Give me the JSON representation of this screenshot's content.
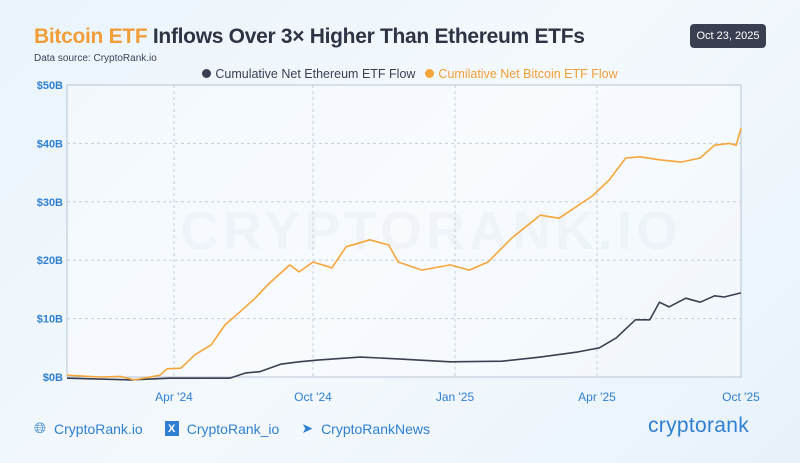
{
  "header": {
    "title_highlight": "Bitcoin ETF",
    "title_rest": " Inflows Over 3× Higher Than Ethereum ETFs",
    "source": "Data source: CryptoRank.io",
    "date": "Oct 23, 2025"
  },
  "watermark": "CRYPTORANK.IO",
  "footer": {
    "website": "CryptoRank.io",
    "x": "CryptoRank_io",
    "telegram": "CryptoRankNews",
    "logo": "cryptorank"
  },
  "colors": {
    "eth": "#3b3f52",
    "btc": "#f5a53a",
    "axis": "#2f7fd3"
  },
  "chart_data": {
    "type": "line",
    "title": "Bitcoin ETF Inflows Over 3× Higher Than Ethereum ETFs",
    "x_unit": "months since Jan 2024",
    "ylabel": "",
    "ylim": [
      0,
      50
    ],
    "yticks": [
      {
        "v": 0,
        "label": "$0B"
      },
      {
        "v": 10,
        "label": "$10B"
      },
      {
        "v": 20,
        "label": "$20B"
      },
      {
        "v": 30,
        "label": "$30B"
      },
      {
        "v": 40,
        "label": "$40B"
      },
      {
        "v": 50,
        "label": "$50B"
      }
    ],
    "xticks": [
      {
        "v": 3,
        "label": "Apr '24"
      },
      {
        "v": 9,
        "label": "Oct '24"
      },
      {
        "v": 12,
        "label": "Jan '25"
      },
      {
        "v": 15,
        "label": "Apr '25"
      },
      {
        "v": 21,
        "label": "Oct '25"
      }
    ],
    "legend": "top-center",
    "grid": true,
    "series": [
      {
        "name": "Cumulative Net Ethereum ETF Flow",
        "color": "#3b3f52",
        "x": [
          -1.6,
          1.1,
          2.8,
          5.4,
          6.1,
          6.7,
          7.6,
          8.4,
          9.1,
          10.0,
          10.8,
          11.9,
          13.0,
          13.8,
          14.6,
          15.1,
          15.8,
          16.6,
          17.2,
          17.6,
          18.0,
          18.7,
          19.3,
          19.9,
          20.3,
          21
        ],
        "y": [
          -0.2,
          -0.5,
          -0.2,
          -0.2,
          0.7,
          0.9,
          2.2,
          2.6,
          2.9,
          3.4,
          3.1,
          2.6,
          2.7,
          3.4,
          4.3,
          5.0,
          6.7,
          9.8,
          9.8,
          12.8,
          12.0,
          13.5,
          12.8,
          13.9,
          13.7,
          14.4
        ]
      },
      {
        "name": "Cumilative Net Bitcoin ETF Flow",
        "color": "#f5a53a",
        "x": [
          -1.6,
          -0.2,
          0.7,
          1.3,
          2.4,
          2.7,
          3.3,
          3.9,
          4.6,
          5.2,
          5.8,
          6.5,
          7.1,
          8.0,
          8.4,
          9.0,
          9.4,
          9.7,
          10.2,
          10.6,
          10.8,
          11.3,
          11.9,
          12.3,
          12.7,
          13.2,
          13.8,
          14.2,
          14.9,
          15.5,
          16.2,
          16.8,
          17.6,
          18.5,
          19.3,
          19.9,
          20.5,
          20.8,
          21
        ],
        "y": [
          0.3,
          0,
          0.1,
          -0.5,
          0.3,
          1.4,
          1.5,
          3.8,
          5.5,
          8.9,
          11,
          13.5,
          16,
          19.2,
          18,
          19.7,
          18.7,
          22.3,
          23.5,
          22.6,
          19.7,
          18.3,
          19.2,
          18.3,
          19.7,
          23.8,
          27.7,
          27.2,
          31,
          33.7,
          37.5,
          37.7,
          37.2,
          36.8,
          37.5,
          39.7,
          40,
          39.7,
          42.6
        ]
      }
    ]
  }
}
